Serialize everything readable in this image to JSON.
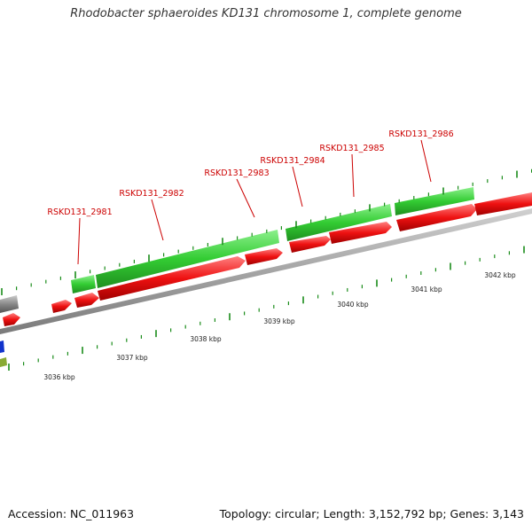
{
  "title": "Rhodobacter sphaeroides KD131 chromosome 1, complete genome",
  "footer": {
    "accession": "Accession: NC_011963",
    "summary": "Topology: circular; Length: 3,152,792 bp; Genes: 3,143"
  },
  "colors": {
    "forward_gene": "#33cc33",
    "reverse_gene": "#ee1111",
    "backbone": "#999999",
    "tick": "#1a8c1a",
    "label": "#cc0000",
    "gray_feature": "#777777",
    "blue_feature": "#1133cc",
    "olive_feature": "#88aa33"
  },
  "gene_labels": [
    "RSKD131_2981",
    "RSKD131_2982",
    "RSKD131_2983",
    "RSKD131_2984",
    "RSKD131_2985",
    "RSKD131_2986"
  ],
  "kbp_labels": [
    "3036 kbp",
    "3037 kbp",
    "3038 kbp",
    "3039 kbp",
    "3040 kbp",
    "3041 kbp",
    "3042 kbp"
  ]
}
